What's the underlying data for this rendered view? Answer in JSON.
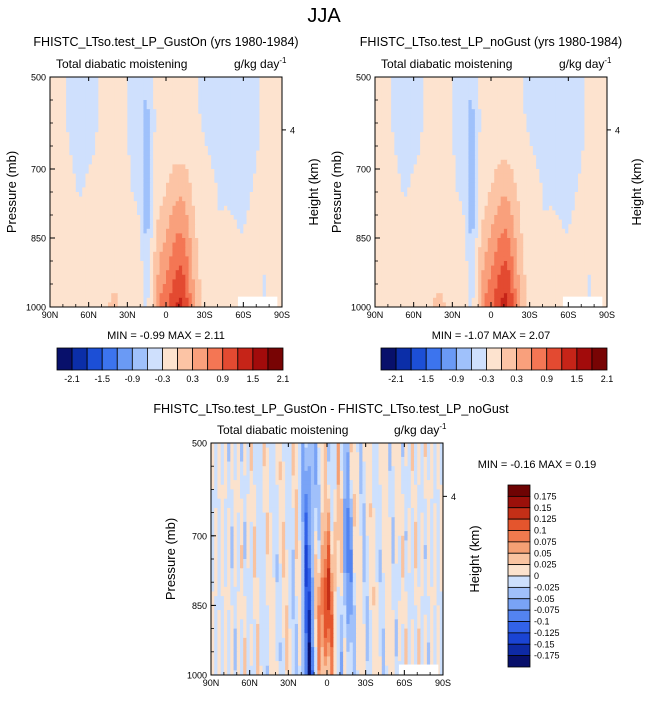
{
  "page_title": "JJA",
  "colors": {
    "white": "#ffffff",
    "axis": "#000000",
    "palette_abs": [
      "#08106b",
      "#0b2ea8",
      "#1c4fd6",
      "#3c74ee",
      "#6a9af5",
      "#9fc1fb",
      "#cfe0fd",
      "#fde3cf",
      "#fcc4a5",
      "#f9a07c",
      "#f47654",
      "#e34a31",
      "#c62418",
      "#a20b0b",
      "#780404"
    ],
    "palette_diff": [
      "#08106b",
      "#0e2aa5",
      "#1a44d4",
      "#3262e8",
      "#5383f0",
      "#79a3f6",
      "#a0c0fa",
      "#cde0fd",
      "#fbe2cd",
      "#f9c3a0",
      "#f5a074",
      "#f07a4e",
      "#e4552d",
      "#c42f17",
      "#9b100a",
      "#6e0303"
    ]
  },
  "chart_data": [
    {
      "type": "heatmap",
      "title": "FHISTC_LTso.test_LP_GustOn (yrs 1980-1984)",
      "left_label": "Total diabatic moistening",
      "right_label": "g/kg day",
      "right_label_exp": "-1",
      "ylabel": "Pressure (mb)",
      "ylabel_right": "Height (km)",
      "y_ticks": [
        "500",
        "700",
        "850",
        "1000"
      ],
      "y_tick_values": [
        500,
        700,
        850,
        1000
      ],
      "ylim": [
        500,
        1000
      ],
      "x_ticks": [
        "90N",
        "60N",
        "30N",
        "0",
        "30S",
        "60S",
        "90S"
      ],
      "xlim": [
        90,
        -90
      ],
      "height_ticks": [
        "4"
      ],
      "height_tick_pressure": [
        615
      ],
      "min_max_text": "MIN =  -0.99  MAX =   2.11",
      "min": -0.99,
      "max": 2.11,
      "colorbar_labels": [
        "-2.1",
        "-1.5",
        "-0.9",
        "-0.3",
        "0.3",
        "0.9",
        "1.5",
        "2.1"
      ],
      "colorbar_levels": [
        -2.1,
        -1.8,
        -1.5,
        -1.2,
        -0.9,
        -0.6,
        -0.3,
        0,
        0.3,
        0.6,
        0.9,
        1.2,
        1.5,
        1.8,
        2.1
      ],
      "field_scale": 1.0
    },
    {
      "type": "heatmap",
      "title": "FHISTC_LTso.test_LP_noGust (yrs 1980-1984)",
      "left_label": "Total diabatic moistening",
      "right_label": "g/kg day",
      "right_label_exp": "-1",
      "ylabel": "Pressure (mb)",
      "ylabel_right": "Height (km)",
      "y_ticks": [
        "500",
        "700",
        "850",
        "1000"
      ],
      "y_tick_values": [
        500,
        700,
        850,
        1000
      ],
      "ylim": [
        500,
        1000
      ],
      "x_ticks": [
        "90N",
        "60N",
        "30N",
        "0",
        "30S",
        "60S",
        "90S"
      ],
      "xlim": [
        90,
        -90
      ],
      "height_ticks": [
        "4"
      ],
      "height_tick_pressure": [
        615
      ],
      "min_max_text": "MIN =  -1.07  MAX =   2.07",
      "min": -1.07,
      "max": 2.07,
      "colorbar_labels": [
        "-2.1",
        "-1.5",
        "-0.9",
        "-0.3",
        "0.3",
        "0.9",
        "1.5",
        "2.1"
      ],
      "colorbar_levels": [
        -2.1,
        -1.8,
        -1.5,
        -1.2,
        -0.9,
        -0.6,
        -0.3,
        0,
        0.3,
        0.6,
        0.9,
        1.2,
        1.5,
        1.8,
        2.1
      ],
      "field_scale": 1.03
    },
    {
      "type": "heatmap",
      "title": "FHISTC_LTso.test_LP_GustOn - FHISTC_LTso.test_LP_noGust",
      "left_label": "Total diabatic moistening",
      "right_label": "g/kg day",
      "right_label_exp": "-1",
      "ylabel": "Pressure (mb)",
      "ylabel_right": "Height (km)",
      "y_ticks": [
        "500",
        "700",
        "850",
        "1000"
      ],
      "y_tick_values": [
        500,
        700,
        850,
        1000
      ],
      "ylim": [
        500,
        1000
      ],
      "x_ticks": [
        "90N",
        "60N",
        "30N",
        "0",
        "30S",
        "60S",
        "90S"
      ],
      "xlim": [
        90,
        -90
      ],
      "height_ticks": [
        "4"
      ],
      "height_tick_pressure": [
        615
      ],
      "min_max_text": "MIN =  -0.16  MAX =   0.19",
      "min": -0.16,
      "max": 0.19,
      "colorbar_labels": [
        "0.175",
        "0.15",
        "0.125",
        "0.1",
        "0.075",
        "0.05",
        "0.025",
        "0",
        "-0.025",
        "-0.05",
        "-0.075",
        "-0.1",
        "-0.125",
        "-0.15",
        "-0.175"
      ],
      "colorbar_levels": [
        0.175,
        0.15,
        0.125,
        0.1,
        0.075,
        0.05,
        0.025,
        0,
        -0.025,
        -0.05,
        -0.075,
        -0.1,
        -0.125,
        -0.15,
        -0.175
      ]
    }
  ]
}
